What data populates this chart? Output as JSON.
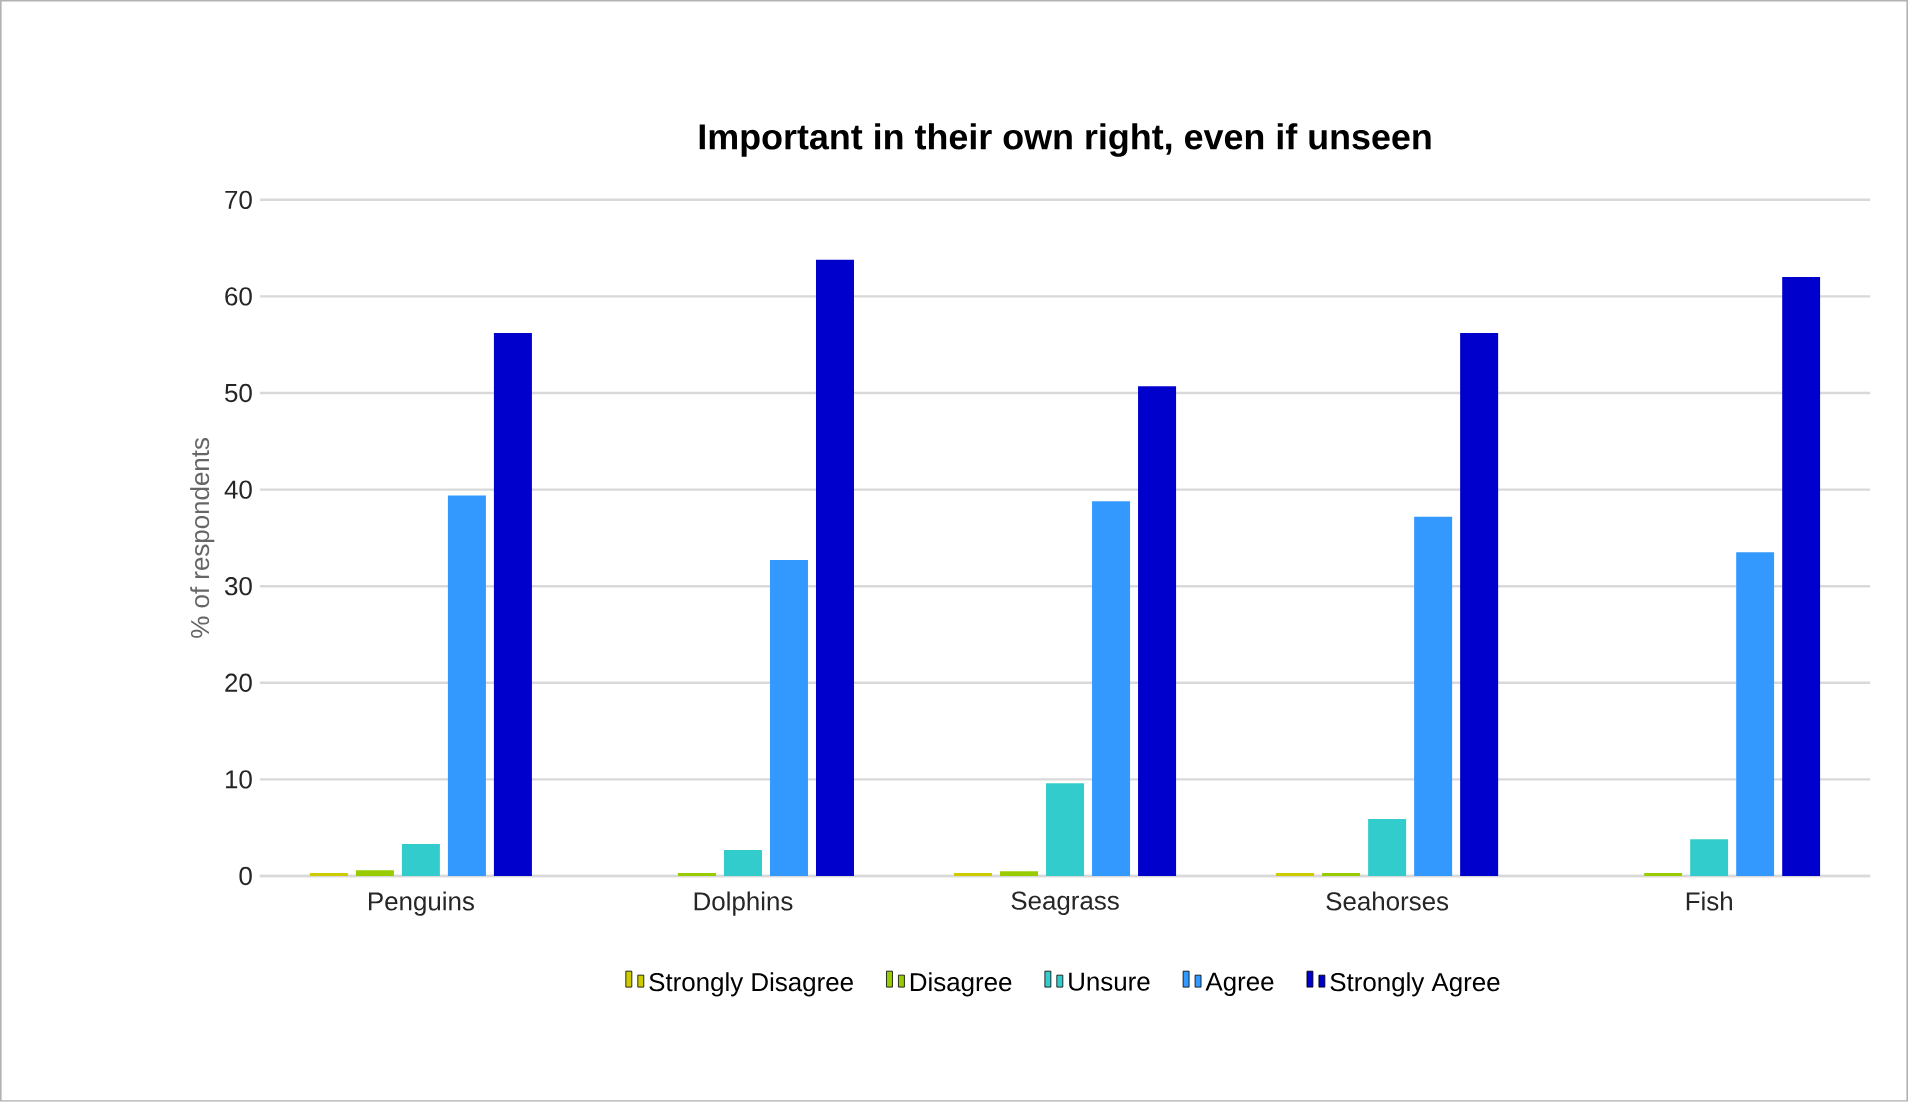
{
  "chart_data": {
    "type": "bar",
    "title": "Important in their own right, even if unseen",
    "ylabel": "% of respondents",
    "categories": [
      "Penguins",
      "Dolphins",
      "Seagrass",
      "Seahorses",
      "Fish"
    ],
    "series": [
      {
        "name": "Strongly Disagree",
        "color": "#cccc00",
        "values": [
          0.3,
          0,
          0.3,
          0.3,
          0
        ]
      },
      {
        "name": "Disagree",
        "color": "#99cc00",
        "values": [
          0.6,
          0.3,
          0.5,
          0.3,
          0.3
        ]
      },
      {
        "name": "Unsure",
        "color": "#33cccc",
        "values": [
          3.3,
          2.7,
          9.6,
          5.9,
          3.8
        ]
      },
      {
        "name": "Agree",
        "color": "#3399ff",
        "values": [
          39.4,
          32.7,
          38.8,
          37.2,
          33.5
        ]
      },
      {
        "name": "Strongly Agree",
        "color": "#0000cc",
        "values": [
          56.2,
          63.8,
          50.7,
          56.2,
          62
        ]
      }
    ],
    "ylim": [
      0,
      70
    ],
    "yticks": [
      0,
      10,
      20,
      30,
      40,
      50,
      60,
      70
    ],
    "grid": "y",
    "legend": "bottom"
  }
}
